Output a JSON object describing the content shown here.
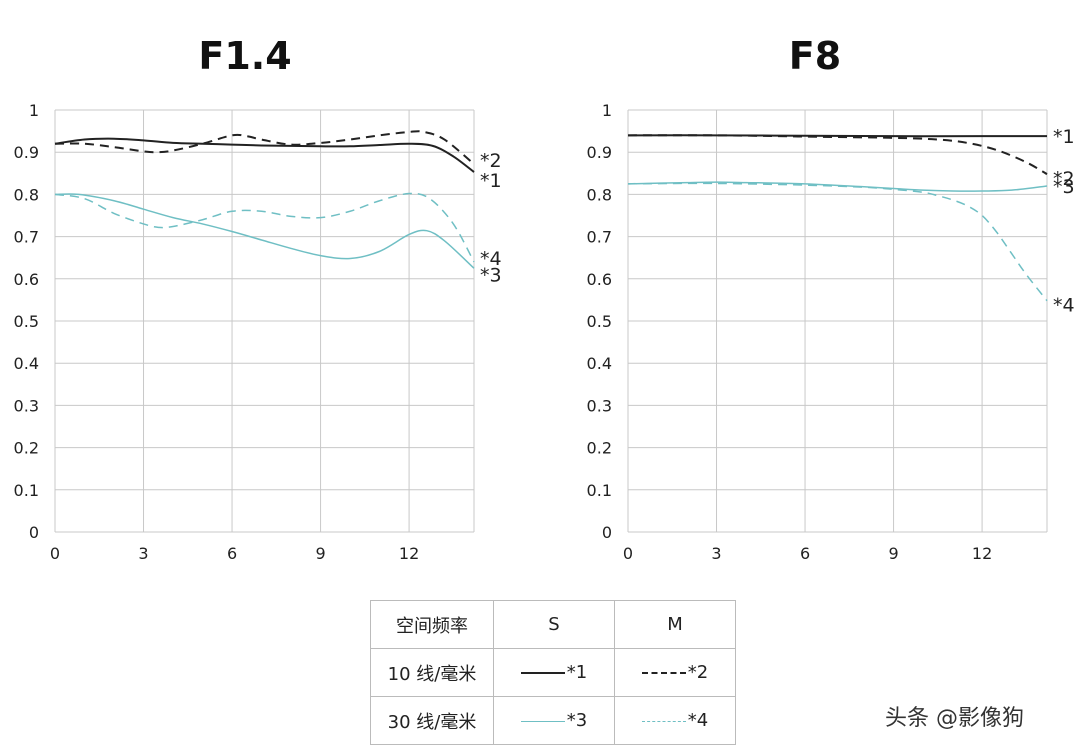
{
  "chart_data": [
    {
      "type": "line",
      "title": "F1.4",
      "x_ticks": [
        0,
        3,
        6,
        9,
        12
      ],
      "y_ticks": [
        "0",
        "0.1",
        "0.2",
        "0.3",
        "0.4",
        "0.5",
        "0.6",
        "0.7",
        "0.8",
        "0.9",
        "1"
      ],
      "xlim": [
        0,
        14.2
      ],
      "ylim": [
        0,
        1
      ],
      "grid": true,
      "series": [
        {
          "name": "*1",
          "color": "#222222",
          "dash": false,
          "x": [
            0,
            1,
            2,
            3,
            4,
            5,
            6,
            7,
            8,
            9,
            10,
            11,
            12,
            12.8,
            13.5,
            14.2
          ],
          "y": [
            0.92,
            0.93,
            0.932,
            0.928,
            0.922,
            0.92,
            0.918,
            0.916,
            0.915,
            0.914,
            0.914,
            0.917,
            0.92,
            0.915,
            0.89,
            0.853
          ]
        },
        {
          "name": "*2",
          "color": "#222222",
          "dash": true,
          "x": [
            0,
            1,
            2,
            3,
            3.5,
            4,
            5,
            6,
            6.5,
            7,
            8,
            9,
            10,
            11,
            12,
            12.5,
            13.2,
            14.2
          ],
          "y": [
            0.92,
            0.92,
            0.912,
            0.902,
            0.9,
            0.904,
            0.92,
            0.94,
            0.938,
            0.93,
            0.918,
            0.922,
            0.93,
            0.94,
            0.948,
            0.948,
            0.93,
            0.872
          ]
        },
        {
          "name": "*3",
          "color": "#6fbfc4",
          "dash": false,
          "x": [
            0,
            0.8,
            2,
            3,
            4,
            5,
            6,
            7,
            8,
            9,
            10,
            11,
            12,
            12.6,
            13.2,
            14.2
          ],
          "y": [
            0.8,
            0.8,
            0.785,
            0.765,
            0.745,
            0.73,
            0.712,
            0.692,
            0.672,
            0.655,
            0.648,
            0.665,
            0.705,
            0.714,
            0.69,
            0.625
          ]
        },
        {
          "name": "*4",
          "color": "#6fbfc4",
          "dash": true,
          "x": [
            0,
            1,
            2,
            3,
            3.5,
            4,
            5,
            6,
            7,
            8,
            9,
            10,
            11,
            12,
            12.7,
            13.5,
            14.2
          ],
          "y": [
            0.8,
            0.79,
            0.755,
            0.73,
            0.722,
            0.724,
            0.74,
            0.76,
            0.76,
            0.748,
            0.745,
            0.76,
            0.785,
            0.802,
            0.79,
            0.73,
            0.64
          ]
        }
      ]
    },
    {
      "type": "line",
      "title": "F8",
      "x_ticks": [
        0,
        3,
        6,
        9,
        12
      ],
      "y_ticks": [
        "0",
        "0.1",
        "0.2",
        "0.3",
        "0.4",
        "0.5",
        "0.6",
        "0.7",
        "0.8",
        "0.9",
        "1"
      ],
      "xlim": [
        0,
        14.2
      ],
      "ylim": [
        0,
        1
      ],
      "grid": true,
      "series": [
        {
          "name": "*1",
          "color": "#222222",
          "dash": false,
          "x": [
            0,
            3,
            6,
            9,
            12,
            14.2
          ],
          "y": [
            0.94,
            0.94,
            0.939,
            0.938,
            0.938,
            0.938
          ]
        },
        {
          "name": "*2",
          "color": "#222222",
          "dash": true,
          "x": [
            0,
            3,
            6,
            9,
            10.5,
            11.5,
            12.5,
            13.5,
            14.2
          ],
          "y": [
            0.94,
            0.94,
            0.937,
            0.934,
            0.93,
            0.922,
            0.905,
            0.876,
            0.848
          ]
        },
        {
          "name": "*3",
          "color": "#6fbfc4",
          "dash": false,
          "x": [
            0,
            2,
            3,
            4,
            6,
            8,
            9,
            10,
            11,
            12,
            13,
            14.2
          ],
          "y": [
            0.825,
            0.828,
            0.829,
            0.828,
            0.825,
            0.818,
            0.814,
            0.81,
            0.808,
            0.808,
            0.81,
            0.82
          ]
        },
        {
          "name": "*4",
          "color": "#6fbfc4",
          "dash": true,
          "x": [
            0,
            3,
            6,
            8,
            9,
            10,
            10.5,
            11,
            11.5,
            12,
            12.5,
            13,
            13.5,
            14.2
          ],
          "y": [
            0.825,
            0.826,
            0.822,
            0.817,
            0.812,
            0.805,
            0.797,
            0.787,
            0.773,
            0.75,
            0.71,
            0.66,
            0.61,
            0.548
          ]
        }
      ]
    }
  ],
  "legend_table": {
    "header": [
      "空间频率",
      "S",
      "M"
    ],
    "rows": [
      {
        "label": "10 线/毫米",
        "s": "*1",
        "m": "*2"
      },
      {
        "label": "30 线/毫米",
        "s": "*3",
        "m": "*4"
      }
    ]
  },
  "watermark": "头条 @影像狗"
}
